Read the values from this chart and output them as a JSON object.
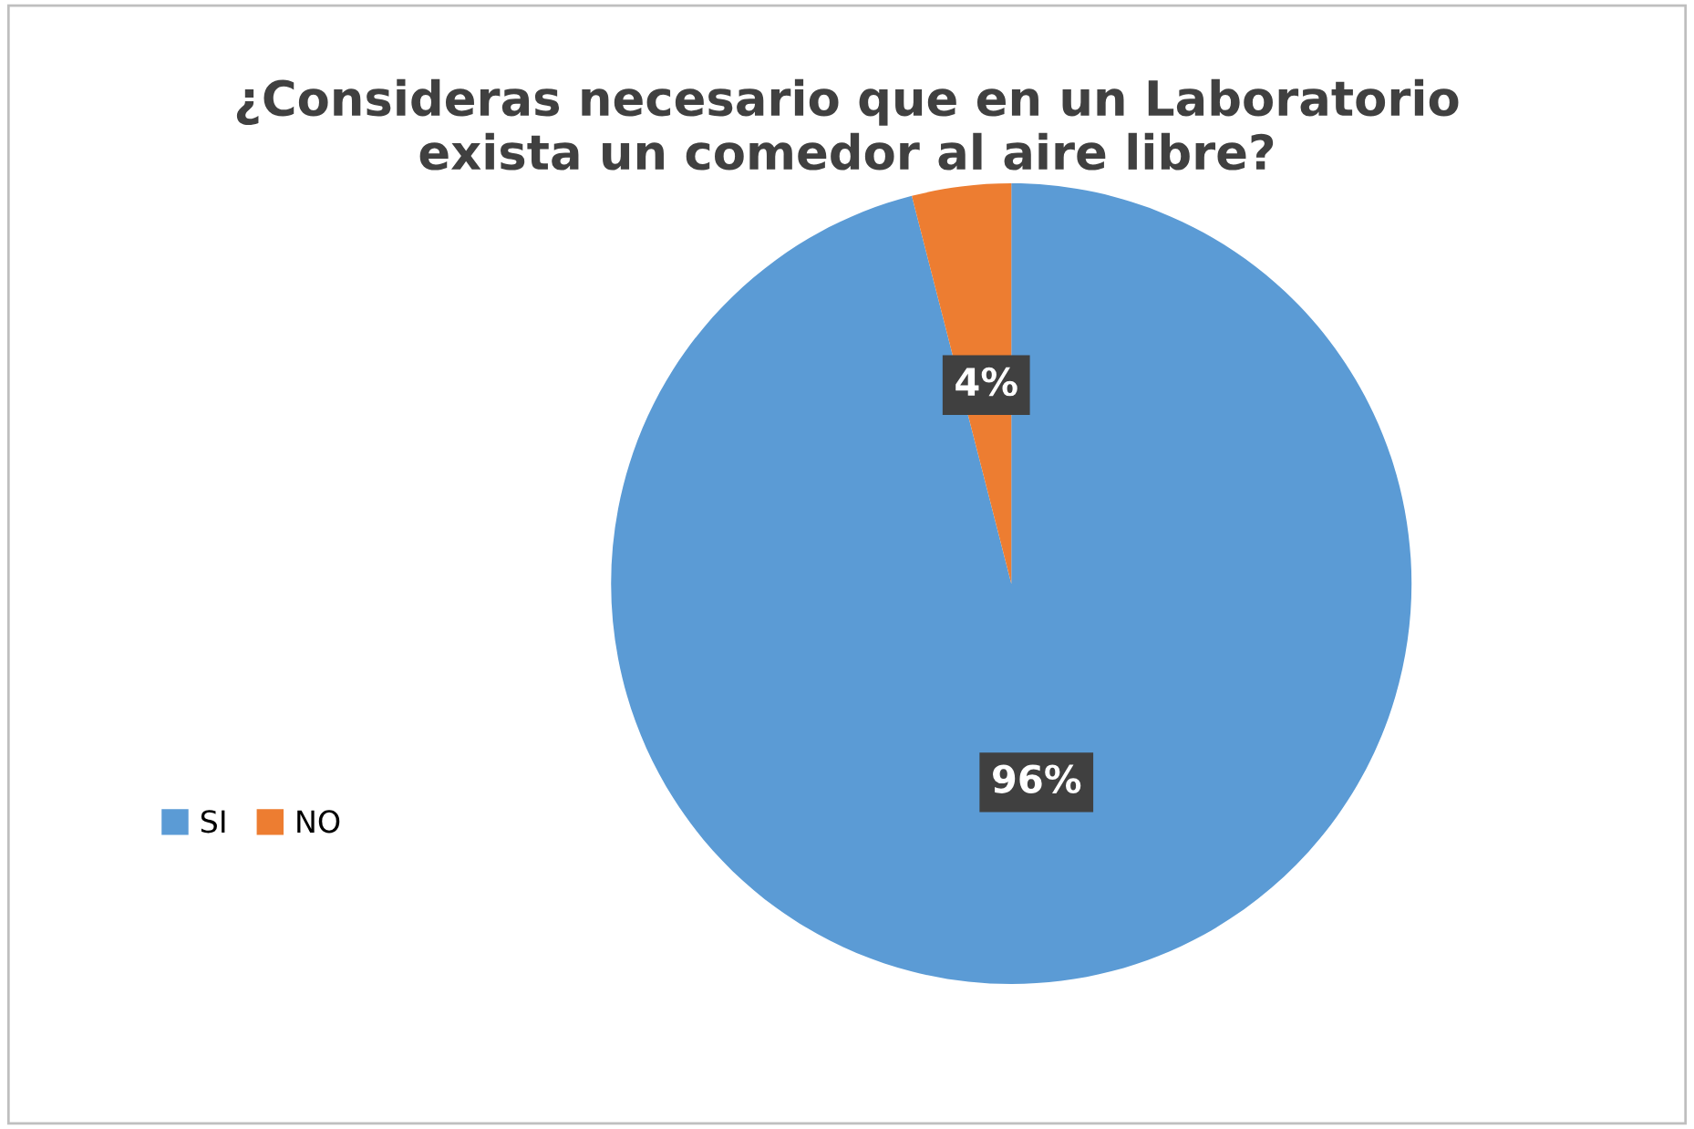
{
  "chart_data": {
    "type": "pie",
    "title": "¿Consideras necesario que en un Laboratorio\nexista un comedor al aire libre?",
    "categories": [
      "SI",
      "NO"
    ],
    "values": [
      96,
      4
    ],
    "colors": [
      "#5b9bd5",
      "#ed7d31"
    ],
    "value_labels": [
      "96%",
      "4%"
    ],
    "legend": "left"
  }
}
